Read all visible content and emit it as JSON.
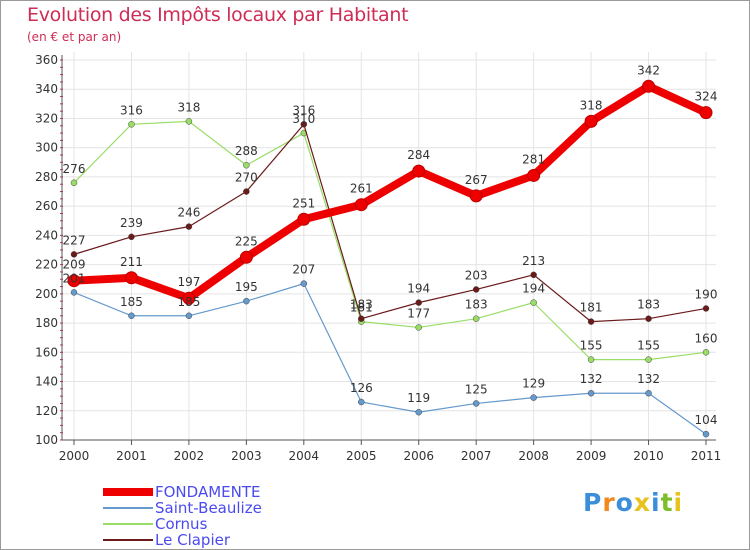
{
  "title": "Evolution des Impôts locaux par Habitant",
  "subtitle": "(en € et par an)",
  "chart_data": {
    "type": "line",
    "title": "Evolution des Impôts locaux par Habitant",
    "subtitle": "(en € et par an)",
    "xlabel": "",
    "ylabel": "",
    "x": [
      "2000",
      "2001",
      "2002",
      "2003",
      "2004",
      "2005",
      "2006",
      "2007",
      "2008",
      "2009",
      "2010",
      "2011"
    ],
    "ylim": [
      100,
      360
    ],
    "yticks": [
      "100",
      "120",
      "140",
      "160",
      "180",
      "200",
      "220",
      "240",
      "260",
      "280",
      "300",
      "320",
      "340",
      "360"
    ],
    "grid": true,
    "legend_position": "bottom-left",
    "series": [
      {
        "name": "FONDAMENTE",
        "color": "#ee0000",
        "values": [
          209,
          211,
          197,
          225,
          251,
          261,
          284,
          267,
          281,
          318,
          342,
          324
        ]
      },
      {
        "name": "Saint-Beaulize",
        "color": "#6699cc",
        "values": [
          201,
          185,
          185,
          195,
          207,
          126,
          119,
          125,
          129,
          132,
          132,
          104
        ]
      },
      {
        "name": "Cornus",
        "color": "#99dd66",
        "values": [
          276,
          316,
          318,
          288,
          310,
          181,
          177,
          183,
          194,
          155,
          155,
          160
        ]
      },
      {
        "name": "Le Clapier",
        "color": "#6b1a1a",
        "values": [
          227,
          239,
          246,
          270,
          316,
          183,
          194,
          203,
          213,
          181,
          183,
          190
        ]
      }
    ]
  },
  "legend": [
    {
      "label": "FONDAMENTE",
      "color": "#ee0000"
    },
    {
      "label": "Saint-Beaulize",
      "color": "#6699cc"
    },
    {
      "label": "Cornus",
      "color": "#99dd66"
    },
    {
      "label": "Le Clapier",
      "color": "#6b1a1a"
    }
  ],
  "logo": {
    "text": "Proxiti"
  }
}
